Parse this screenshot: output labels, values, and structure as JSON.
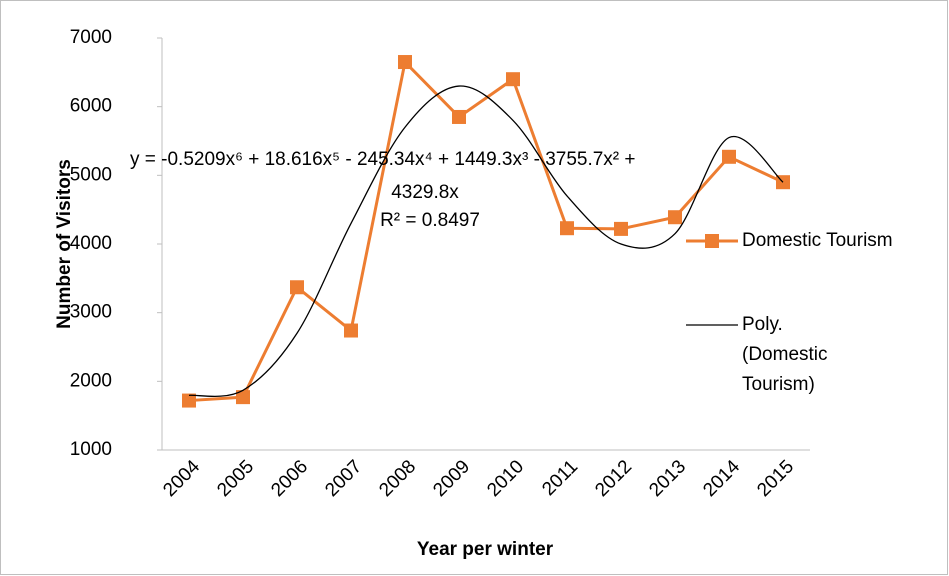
{
  "chart_data": {
    "type": "line",
    "x_label": "Year per winter",
    "y_label": "Number of Visitors",
    "categories": [
      "2004",
      "2005",
      "2006",
      "2007",
      "2008",
      "2009",
      "2010",
      "2011",
      "2012",
      "2013",
      "2014",
      "2015"
    ],
    "series": [
      {
        "name": "Domestic Tourism",
        "color": "#ed7d31",
        "marker": "square",
        "values": [
          1720,
          1770,
          3370,
          2740,
          6650,
          5850,
          6400,
          4230,
          4220,
          4390,
          5270,
          4900
        ]
      },
      {
        "name": "Poly. (Domestic Tourism)",
        "color": "#000000",
        "trendline": true,
        "values": [
          1796,
          1870,
          2700,
          4300,
          5700,
          6300,
          5800,
          4700,
          4000,
          4150,
          5550,
          4900
        ]
      }
    ],
    "trendline_equation": "y = -0.5209x⁶ + 18.616x⁵ - 245.34x⁴ + 1449.3x³ - 3755.7x² +",
    "trendline_equation_cont": "4329.8x",
    "r_squared": "R² = 0.8497",
    "ylim": [
      1000,
      7000
    ],
    "yticks": [
      1000,
      2000,
      3000,
      4000,
      5000,
      6000,
      7000
    ],
    "grid": false
  }
}
